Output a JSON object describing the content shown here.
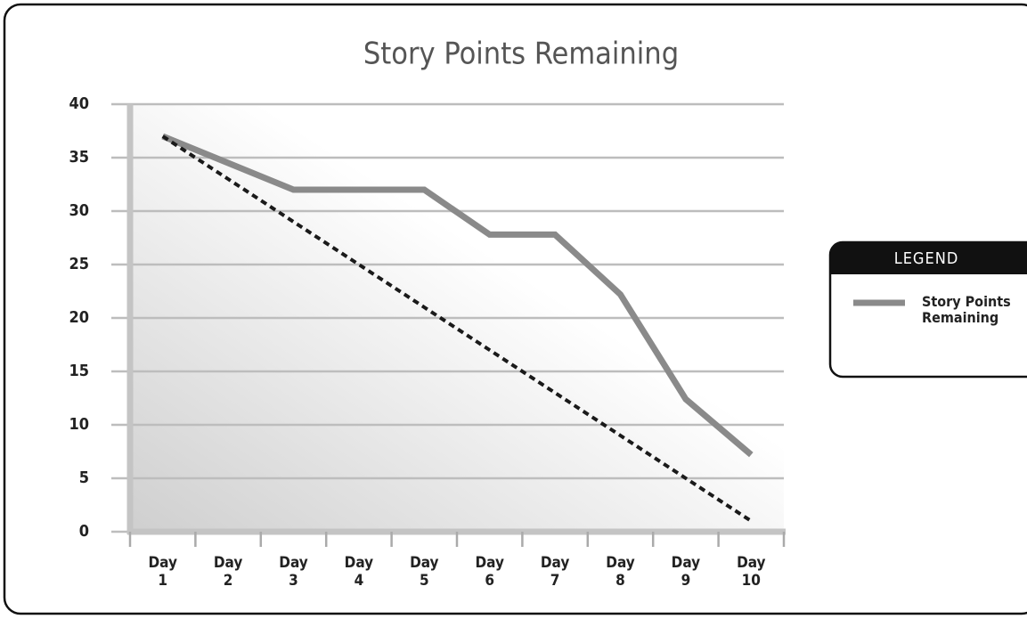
{
  "chart_data": {
    "type": "line",
    "title": "Story Points Remaining",
    "categories": [
      "Day 1",
      "Day 2",
      "Day 3",
      "Day 4",
      "Day 5",
      "Day 6",
      "Day 7",
      "Day 8",
      "Day 9",
      "Day 10"
    ],
    "series": [
      {
        "name": "Story Points Remaining",
        "color": "#8a8a8a",
        "values": [
          37,
          34.5,
          32,
          32,
          32,
          27.8,
          27.8,
          22.2,
          12.4,
          7.2
        ]
      },
      {
        "color": "#1a1a1a",
        "dashed": true,
        "values": [
          37,
          33,
          29,
          25,
          21,
          17,
          13,
          9,
          5,
          1
        ]
      }
    ],
    "ylim": [
      0,
      40
    ],
    "yticks": [
      0,
      5,
      10,
      15,
      20,
      25,
      30,
      35,
      40
    ],
    "grid": true,
    "legend": {
      "title": "LEGEND",
      "position": "right"
    }
  }
}
